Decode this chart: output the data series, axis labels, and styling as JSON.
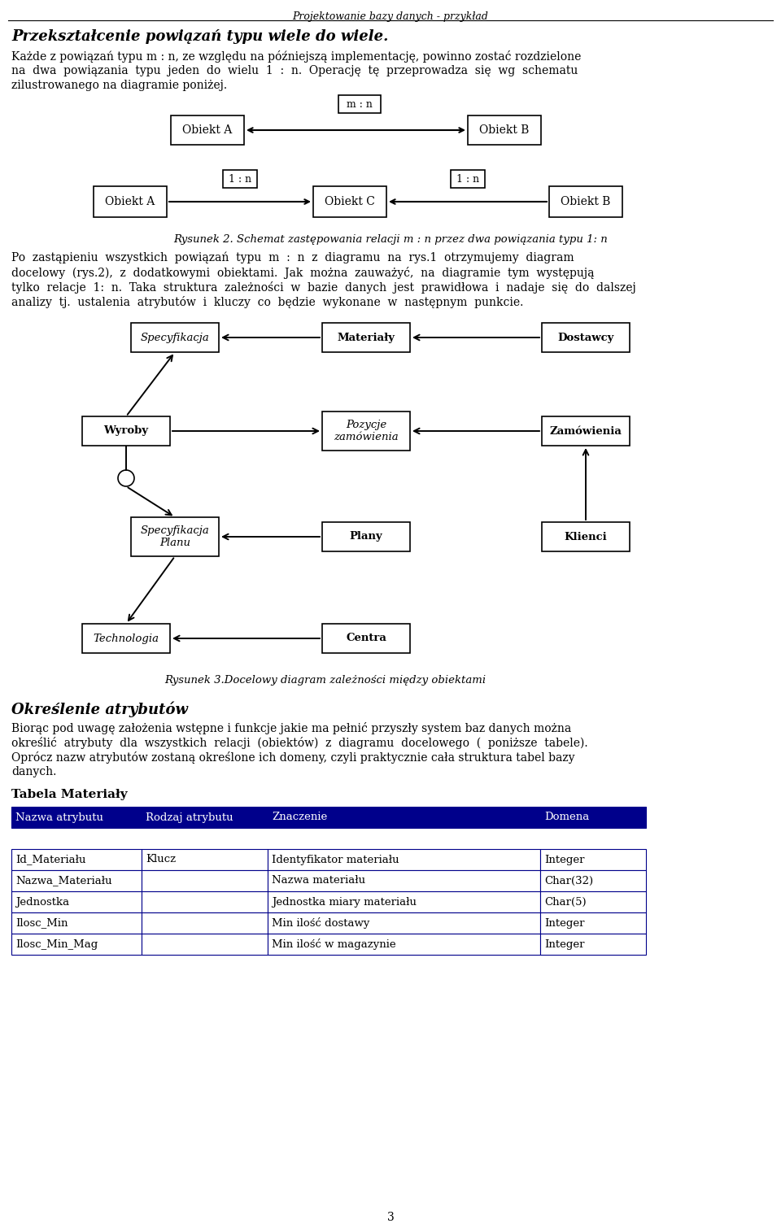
{
  "page_title": "Projektowanie bazy danych - przykład",
  "section1_title": "Przekształcenie powiązań typu wiele do wiele.",
  "section1_body_lines": [
    "Każde z powiązań typu m : n, ze względu na późniejszą implementację, powinno zostać rozdzielone",
    "na  dwa  powiązania  typu  jeden  do  wielu  1  :  n.  Operację  tę  przeprowadza  się  wg  schematu",
    "zilustrowanego na diagramie poniżej."
  ],
  "diag1_objA": "Obiekt A",
  "diag1_objB": "Obiekt B",
  "diag1_label": "m : n",
  "diag2_objA": "Obiekt A",
  "diag2_objC": "Obiekt C",
  "diag2_objB": "Obiekt B",
  "diag2_label1": "1 : n",
  "diag2_label2": "1 : n",
  "rysunek2_caption": "Rysunek 2. Schemat zastępowania relacji m : n przez dwa powiązania typu 1: n",
  "section2_body_lines": [
    "Po  zastąpieniu  wszystkich  powiązań  typu  m  :  n  z  diagramu  na  rys.1  otrzymujemy  diagram",
    "docelowy  (rys.2),  z  dodatkowymi  obiektami.  Jak  można  zauważyć,  na  diagramie  tym  występują",
    "tylko  relacje  1:  n.  Taka  struktura  zależności  w  bazie  danych  jest  prawidłowa  i  nadaje  się  do  dalszej",
    "analizy  tj.  ustalenia  atrybutów  i  kluczy  co  będzie  wykonane  w  następnym  punkcie."
  ],
  "italic_nodes": [
    "Specyfikacja",
    "Pozycje\nzamówienia",
    "Specyfikacja\nPlanu",
    "Technologia"
  ],
  "bold_nodes": [
    "Materiały",
    "Dostawcy",
    "Wyroby",
    "Zamówienia",
    "Plany",
    "Klienci",
    "Centra"
  ],
  "rysunek3_caption": "Rysunek 3.Docelowy diagram zależności między obiektami",
  "section3_title": "Określenie atrybutów",
  "section3_body_lines": [
    "Biorąc pod uwagę założenia wstępne i funkcje jakie ma pełnić przyszły system baz danych można",
    "określić  atrybuty  dla  wszystkich  relacji  (obiektów)  z  diagramu  docelowego  (  poniższe  tabele).",
    "Oprócz nazw atrybutów zostaną określone ich domeny, czyli praktycznie cała struktura tabel bazy",
    "danych."
  ],
  "table_title": "Tabela Materiały",
  "table_header": [
    "Nazwa atrybutu",
    "Rodzaj atrybutu",
    "Znaczenie",
    "Domena"
  ],
  "table_rows": [
    [
      "Id_Materiału",
      "Klucz",
      "Identyfikator materiału",
      "Integer"
    ],
    [
      "Nazwa_Materiału",
      "",
      "Nazwa materiału",
      "Char(32)"
    ],
    [
      "Jednostka",
      "",
      "Jednostka miary materiału",
      "Char(5)"
    ],
    [
      "Ilosc_Min",
      "",
      "Min ilość dostawy",
      "Integer"
    ],
    [
      "Ilosc_Min_Mag",
      "",
      "Min ilość w magazynie",
      "Integer"
    ]
  ],
  "table_header_bg": "#00008B",
  "table_row_bg": "#FFFFFF",
  "table_border_color": "#00008B",
  "page_number": "3",
  "bg_color": "#FFFFFF"
}
